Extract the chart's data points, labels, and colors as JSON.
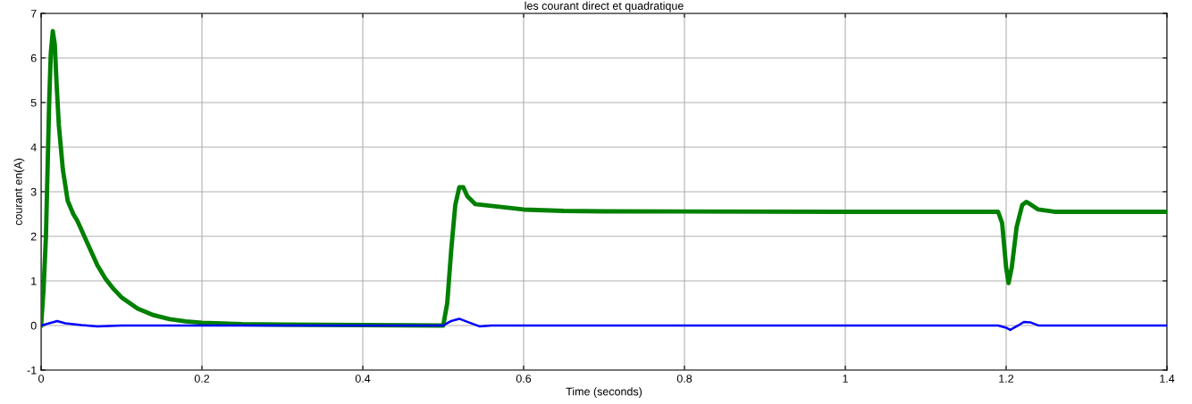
{
  "chart_data": {
    "type": "line",
    "title": "les courant direct et quadratique",
    "xlabel": "Time (seconds)",
    "ylabel": "courant en(A)",
    "xlim": [
      0,
      1.4
    ],
    "xticks": [
      0,
      0.2,
      0.4,
      0.6,
      0.8,
      1,
      1.2,
      1.4
    ],
    "ylim": [
      -1,
      7
    ],
    "yticks": [
      -1,
      0,
      1,
      2,
      3,
      4,
      5,
      6,
      7
    ],
    "grid": true,
    "line_style": "solid",
    "marker": "none",
    "series": [
      {
        "color": "#008000",
        "x": [
          0,
          0.003,
          0.006,
          0.008,
          0.01,
          0.012,
          0.0145,
          0.017,
          0.019,
          0.022,
          0.027,
          0.033,
          0.04,
          0.045,
          0.05,
          0.06,
          0.07,
          0.08,
          0.09,
          0.1,
          0.12,
          0.14,
          0.16,
          0.18,
          0.2,
          0.25,
          0.3,
          0.4,
          0.5,
          0.505,
          0.51,
          0.515,
          0.52,
          0.525,
          0.53,
          0.54,
          0.56,
          0.6,
          0.65,
          0.7,
          1.0,
          1.19,
          1.195,
          1.2,
          1.203,
          1.207,
          1.213,
          1.22,
          1.225,
          1.23,
          1.24,
          1.26,
          1.4
        ],
        "values": [
          0,
          0.8,
          2,
          3.5,
          5,
          6.1,
          6.6,
          6.3,
          5.5,
          4.5,
          3.5,
          2.8,
          2.5,
          2.35,
          2.15,
          1.75,
          1.35,
          1.05,
          0.82,
          0.63,
          0.38,
          0.23,
          0.14,
          0.09,
          0.06,
          0.03,
          0.02,
          0.01,
          0,
          0.5,
          1.7,
          2.7,
          3.1,
          3.1,
          2.9,
          2.72,
          2.68,
          2.6,
          2.57,
          2.56,
          2.55,
          2.55,
          2.3,
          1.3,
          0.95,
          1.3,
          2.2,
          2.7,
          2.77,
          2.72,
          2.6,
          2.55,
          2.55
        ]
      },
      {
        "color": "#0000ff",
        "x": [
          0,
          0.01,
          0.02,
          0.03,
          0.05,
          0.07,
          0.1,
          0.5,
          0.51,
          0.52,
          0.53,
          0.545,
          0.56,
          1.19,
          1.2,
          1.205,
          1.215,
          1.222,
          1.23,
          1.24,
          1.4
        ],
        "values": [
          0,
          0.05,
          0.1,
          0.05,
          0.01,
          -0.02,
          0,
          0,
          0.1,
          0.15,
          0.08,
          -0.02,
          0,
          0,
          -0.05,
          -0.1,
          0,
          0.08,
          0.07,
          0,
          0
        ]
      }
    ]
  }
}
